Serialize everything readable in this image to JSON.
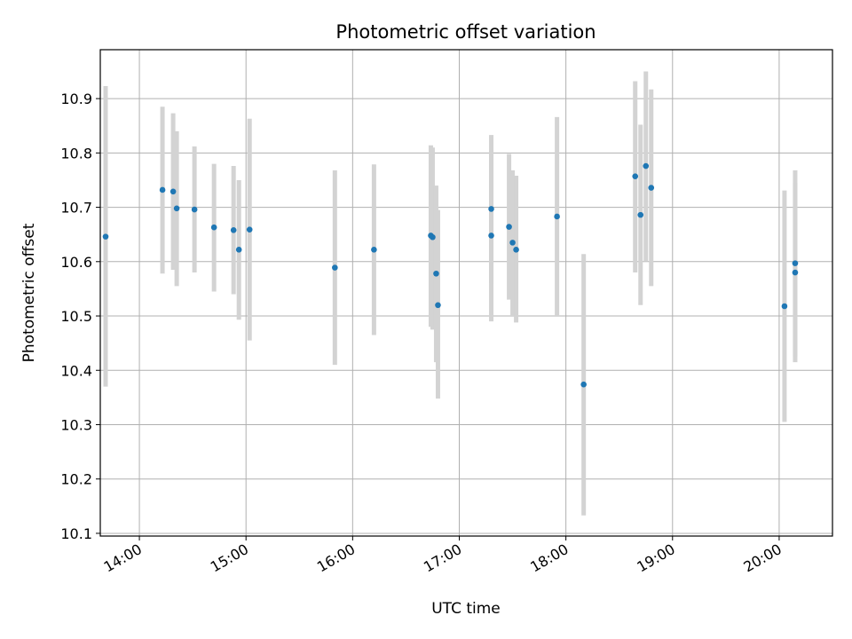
{
  "chart_data": {
    "type": "scatter",
    "title": "Photometric offset variation",
    "xlabel": "UTC time",
    "ylabel": "Photometric offset",
    "xlim": [
      "13:38",
      "20:30"
    ],
    "ylim": [
      10.095,
      10.99
    ],
    "x_ticks": [
      "14:00",
      "15:00",
      "16:00",
      "17:00",
      "18:00",
      "19:00",
      "20:00"
    ],
    "y_ticks": [
      10.1,
      10.2,
      10.3,
      10.4,
      10.5,
      10.6,
      10.7,
      10.8,
      10.9
    ],
    "grid": true,
    "marker_color": "#1f77b4",
    "errorbar_color": "#d3d3d3",
    "points": [
      {
        "time": "13:41",
        "value": 10.646,
        "low": 10.37,
        "high": 10.923
      },
      {
        "time": "14:13",
        "value": 10.732,
        "low": 10.578,
        "high": 10.885
      },
      {
        "time": "14:19",
        "value": 10.729,
        "low": 10.585,
        "high": 10.873
      },
      {
        "time": "14:21",
        "value": 10.698,
        "low": 10.555,
        "high": 10.84
      },
      {
        "time": "14:31",
        "value": 10.696,
        "low": 10.58,
        "high": 10.812
      },
      {
        "time": "14:42",
        "value": 10.663,
        "low": 10.545,
        "high": 10.78
      },
      {
        "time": "14:53",
        "value": 10.658,
        "low": 10.54,
        "high": 10.776
      },
      {
        "time": "14:56",
        "value": 10.622,
        "low": 10.493,
        "high": 10.75
      },
      {
        "time": "15:02",
        "value": 10.659,
        "low": 10.455,
        "high": 10.863
      },
      {
        "time": "15:50",
        "value": 10.589,
        "low": 10.41,
        "high": 10.768
      },
      {
        "time": "16:12",
        "value": 10.622,
        "low": 10.465,
        "high": 10.779
      },
      {
        "time": "16:44",
        "value": 10.648,
        "low": 10.48,
        "high": 10.814
      },
      {
        "time": "16:45",
        "value": 10.645,
        "low": 10.475,
        "high": 10.81
      },
      {
        "time": "16:47",
        "value": 10.578,
        "low": 10.415,
        "high": 10.74
      },
      {
        "time": "16:48",
        "value": 10.52,
        "low": 10.348,
        "high": 10.695
      },
      {
        "time": "17:18",
        "value": 10.648,
        "low": 10.49,
        "high": 10.805
      },
      {
        "time": "17:18",
        "value": 10.697,
        "low": 10.56,
        "high": 10.833
      },
      {
        "time": "17:28",
        "value": 10.664,
        "low": 10.53,
        "high": 10.798
      },
      {
        "time": "17:30",
        "value": 10.635,
        "low": 10.5,
        "high": 10.768
      },
      {
        "time": "17:32",
        "value": 10.622,
        "low": 10.488,
        "high": 10.758
      },
      {
        "time": "17:55",
        "value": 10.683,
        "low": 10.5,
        "high": 10.866
      },
      {
        "time": "18:10",
        "value": 10.374,
        "low": 10.133,
        "high": 10.614
      },
      {
        "time": "18:39",
        "value": 10.757,
        "low": 10.58,
        "high": 10.932
      },
      {
        "time": "18:42",
        "value": 10.686,
        "low": 10.52,
        "high": 10.852
      },
      {
        "time": "18:45",
        "value": 10.776,
        "low": 10.6,
        "high": 10.95
      },
      {
        "time": "18:48",
        "value": 10.736,
        "low": 10.555,
        "high": 10.917
      },
      {
        "time": "20:03",
        "value": 10.518,
        "low": 10.305,
        "high": 10.731
      },
      {
        "time": "20:09",
        "value": 10.58,
        "low": 10.415,
        "high": 10.745
      },
      {
        "time": "20:09",
        "value": 10.597,
        "low": 10.426,
        "high": 10.768
      }
    ]
  }
}
